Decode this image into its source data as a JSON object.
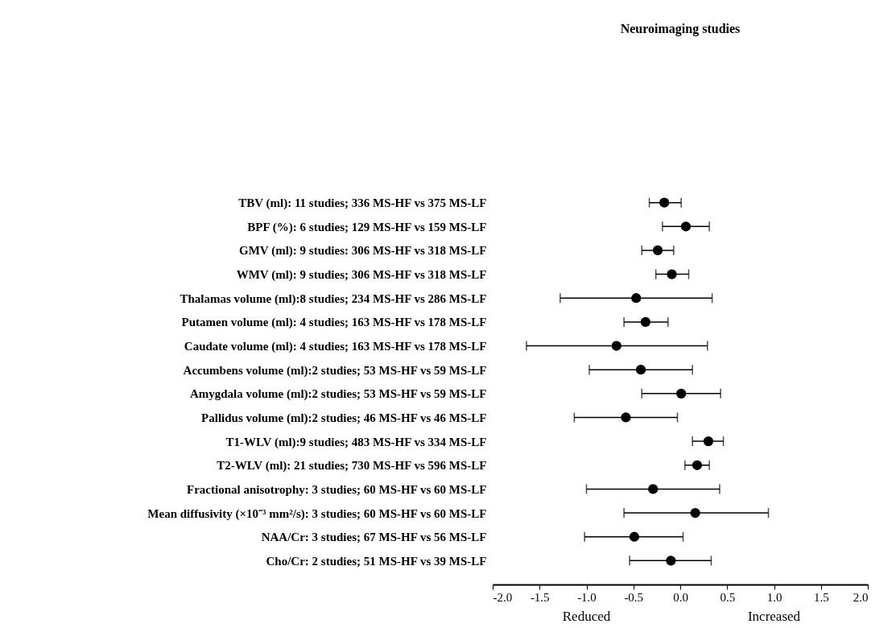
{
  "chart_data": {
    "type": "scatter",
    "title": "Neuroimaging studies",
    "orientation": "horizontal",
    "marker": "circle",
    "grid": false,
    "categories": [
      "TBV (ml): 11 studies; 336 MS-HF vs 375 MS-LF",
      "BPF (%): 6 studies; 129 MS-HF vs 159 MS-LF",
      "GMV (ml): 9 studies: 306 MS-HF vs 318 MS-LF",
      "WMV (ml): 9 studies; 306 MS-HF vs 318 MS-LF",
      "Thalamas volume (ml):8 studies; 234 MS-HF vs 286 MS-LF",
      "Putamen volume (ml): 4 studies; 163 MS-HF vs 178 MS-LF",
      "Caudate volume (ml): 4 studies; 163 MS-HF vs 178 MS-LF",
      "Accumbens volume (ml):2 studies; 53 MS-HF vs 59 MS-LF",
      "Amygdala volume (ml):2 studies; 53 MS-HF vs 59 MS-LF",
      "Pallidus volume (ml):2 studies; 46 MS-HF vs 46 MS-LF",
      "T1-WLV (ml):9 studies; 483 MS-HF vs 334 MS-LF",
      "T2-WLV (ml): 21 studies; 730 MS-HF vs 596 MS-LF",
      "Fractional anisotrophy: 3 studies; 60 MS-HF vs 60 MS-LF",
      "Mean diffusivity (×10⁻³ mm²/s): 3 studies; 60 MS-HF vs 60 MS-LF",
      "NAA/Cr: 3 studies; 67 MS-HF vs 56 MS-LF",
      "Cho/Cr: 2 studies; 51 MS-HF vs 39 MS-LF"
    ],
    "values": [
      -0.17,
      0.06,
      -0.24,
      -0.09,
      -0.47,
      -0.37,
      -0.68,
      -0.42,
      0.01,
      -0.58,
      0.3,
      0.18,
      -0.29,
      0.16,
      -0.49,
      -0.1
    ],
    "errors": [
      [
        -0.33,
        0.01
      ],
      [
        -0.19,
        0.31
      ],
      [
        -0.41,
        -0.07
      ],
      [
        -0.26,
        0.09
      ],
      [
        -1.28,
        0.34
      ],
      [
        -0.6,
        -0.13
      ],
      [
        -1.64,
        0.29
      ],
      [
        -0.97,
        0.13
      ],
      [
        -0.41,
        0.43
      ],
      [
        -1.13,
        -0.03
      ],
      [
        0.13,
        0.46
      ],
      [
        0.05,
        0.31
      ],
      [
        -1.0,
        0.42
      ],
      [
        -0.6,
        0.94
      ],
      [
        -1.02,
        0.03
      ],
      [
        -0.54,
        0.33
      ]
    ],
    "color": "#000000",
    "xlim": [
      -2.0,
      2.0
    ],
    "xticks": [
      {
        "value": -2.0,
        "label": "-2.0"
      },
      {
        "value": -1.5,
        "label": "-1.5"
      },
      {
        "value": -1.0,
        "label": "-1.0"
      },
      {
        "value": -0.5,
        "label": "-0.5"
      },
      {
        "value": 0.0,
        "label": "0.0"
      },
      {
        "value": 0.5,
        "label": "0.5"
      },
      {
        "value": 1.0,
        "label": "1.0"
      },
      {
        "value": 1.5,
        "label": "1.5"
      },
      {
        "value": 2.0,
        "label": "2.0"
      }
    ],
    "annotations": [
      "Reduced",
      "Increased"
    ]
  }
}
